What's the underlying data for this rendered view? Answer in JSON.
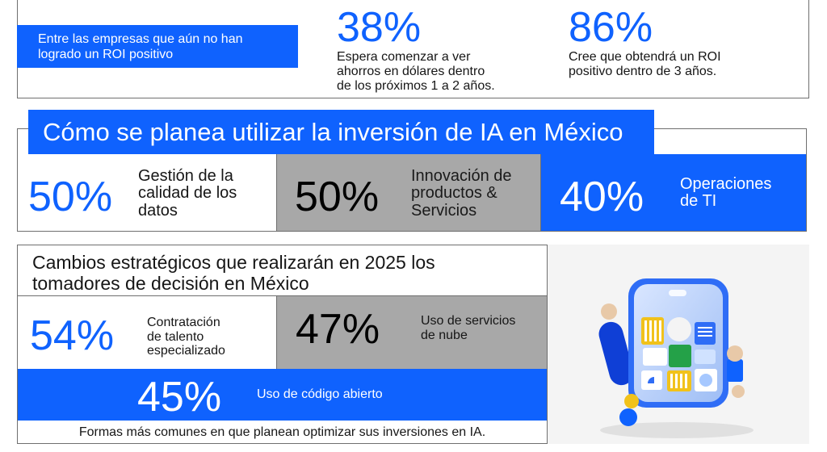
{
  "roi": {
    "label": "Entre las empresas que aún no han logrado un ROI positivo",
    "stats": [
      {
        "value": "38%",
        "lines": [
          "Espera comenzar a ver",
          "ahorros en dólares dentro",
          "de los próximos 1 a 2 años."
        ]
      },
      {
        "value": "86%",
        "lines": [
          "Cree que obtendrá un ROI",
          "positivo dentro de 3 años."
        ]
      }
    ]
  },
  "usage": {
    "title": "Cómo se planea utilizar la inversión de IA en México",
    "items": [
      {
        "value": "50%",
        "lines": [
          "Gestión de la",
          "calidad de los",
          "datos"
        ]
      },
      {
        "value": "50%",
        "lines": [
          "Innovación de",
          "productos &",
          "Servicios"
        ]
      },
      {
        "value": "40%",
        "lines": [
          "Operaciones",
          "de TI"
        ]
      }
    ]
  },
  "changes": {
    "title_lines": [
      "Cambios estratégicos que realizarán en 2025 los",
      "tomadores de decisión en México"
    ],
    "items": [
      {
        "value": "54%",
        "lines": [
          "Contratación",
          "de talento",
          "especializado"
        ]
      },
      {
        "value": "47%",
        "lines": [
          "Uso de servicios",
          "de nube"
        ]
      },
      {
        "value": "45%",
        "lines": [
          "Uso de código abierto"
        ]
      }
    ],
    "footer": "Formas más comunes en que planean optimizar sus inversiones en IA."
  },
  "colors": {
    "accent": "#0f62fe",
    "grey": "#a8a8a8",
    "border": "#6f6f6f"
  },
  "illustration": {
    "icon": "ai-device-illustration"
  }
}
